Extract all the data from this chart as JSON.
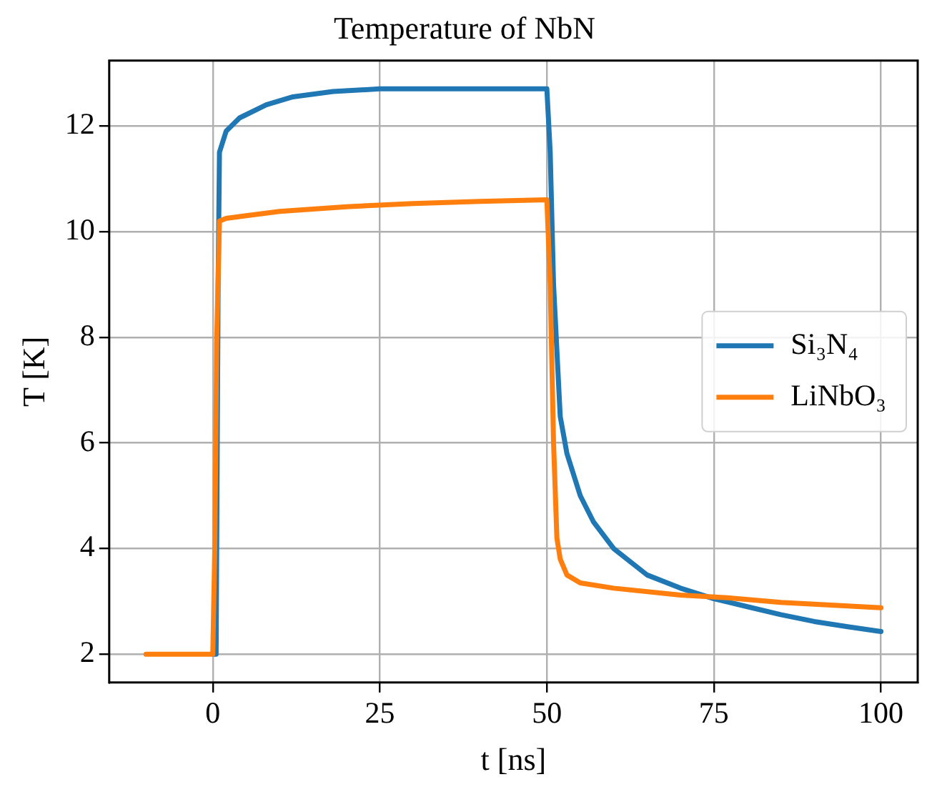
{
  "chart_data": {
    "type": "line",
    "title": "Temperature of NbN",
    "xlabel": "t [ns]",
    "ylabel": "T [K]",
    "xlim": [
      -15.5,
      105.5
    ],
    "xticks": [
      0,
      25,
      50,
      75,
      100
    ],
    "ylim": [
      1.465,
      13.235
    ],
    "yticks": [
      2,
      4,
      6,
      8,
      10,
      12
    ],
    "grid": true,
    "legend": "right",
    "marker": "none",
    "line_style": "solid",
    "series": [
      {
        "name": "Si₃N₄",
        "color": "#1f77b4",
        "x": [
          0,
          0.5,
          0.8,
          1,
          2,
          4,
          8,
          12,
          18,
          25,
          35,
          50,
          50.5,
          51,
          52,
          53,
          55,
          57,
          60,
          65,
          70,
          75,
          80,
          85,
          90,
          95,
          100
        ],
        "values": [
          2,
          2,
          9,
          11.5,
          11.9,
          12.15,
          12.4,
          12.55,
          12.65,
          12.7,
          12.7,
          12.7,
          11.5,
          9,
          6.5,
          5.8,
          5.0,
          4.5,
          4.0,
          3.5,
          3.25,
          3.05,
          2.9,
          2.75,
          2.62,
          2.52,
          2.43
        ]
      },
      {
        "name": "LiNbO₃",
        "color": "#ff7f0e",
        "x": [
          -10,
          0,
          0.3,
          0.6,
          1,
          2,
          5,
          10,
          20,
          30,
          40,
          50,
          50.5,
          51,
          51.5,
          52,
          53,
          55,
          60,
          70,
          77,
          85,
          100
        ],
        "values": [
          2,
          2,
          4,
          8,
          10.2,
          10.25,
          10.3,
          10.38,
          10.47,
          10.53,
          10.57,
          10.6,
          9,
          6,
          4.2,
          3.8,
          3.5,
          3.35,
          3.25,
          3.12,
          3.07,
          2.98,
          2.88
        ]
      }
    ]
  }
}
